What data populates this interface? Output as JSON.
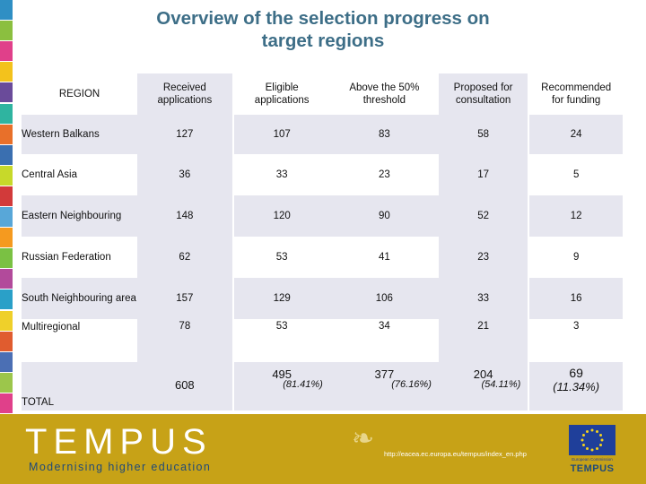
{
  "title_line1": "Overview of the selection progress on",
  "title_line2": "target regions",
  "strip_colors": [
    "#2f8fc4",
    "#8bbf3f",
    "#e0408a",
    "#f3c21c",
    "#6a4b9a",
    "#2fb4a0",
    "#e8702a",
    "#3a6fb0",
    "#c7d92a",
    "#d23a3a",
    "#58a7d8",
    "#f59a1f",
    "#7ac143",
    "#b24a9b",
    "#2aa0c8",
    "#efd02a",
    "#e05c2f",
    "#4b6fb4",
    "#9cc64b",
    "#e0408a"
  ],
  "table": {
    "headers": {
      "region": "REGION",
      "received": [
        "Received",
        "applications"
      ],
      "eligible": [
        "Eligible",
        "applications"
      ],
      "above": [
        "Above the 50%",
        "threshold"
      ],
      "proposed": [
        "Proposed for",
        "consultation"
      ],
      "recommended": [
        "Recommended",
        "for funding"
      ]
    },
    "rows": [
      {
        "region": "Western Balkans",
        "received": "127",
        "eligible": "107",
        "above": "83",
        "proposed": "58",
        "recommended": "24"
      },
      {
        "region": "Central Asia",
        "received": "36",
        "eligible": "33",
        "above": "23",
        "proposed": "17",
        "recommended": "5"
      },
      {
        "region": "Eastern Neighbouring",
        "received": "148",
        "eligible": "120",
        "above": "90",
        "proposed": "52",
        "recommended": "12"
      },
      {
        "region": "Russian Federation",
        "received": "62",
        "eligible": "53",
        "above": "41",
        "proposed": "23",
        "recommended": "9"
      },
      {
        "region": "South Neighbouring area",
        "received": "157",
        "eligible": "129",
        "above": "106",
        "proposed": "33",
        "recommended": "16"
      },
      {
        "region": "Multiregional",
        "received": "78",
        "eligible": "53",
        "above": "34",
        "proposed": "21",
        "recommended": "3"
      }
    ],
    "total": {
      "label": "TOTAL",
      "received": "608",
      "eligible": "495",
      "eligible_pct": "(81.41%)",
      "above": "377",
      "above_pct": "(76.16%)",
      "proposed": "204",
      "proposed_pct": "(54.11%)",
      "recommended": "69",
      "recommended_pct": "(11.34%)"
    }
  },
  "footer": {
    "logo": "TEMPUS",
    "tagline": "Modernising higher education",
    "url": "http://eacea.ec.europa.eu/tempus/index_en.php",
    "eu_label": "European Commission",
    "eu_tempus": "TEMPUS",
    "background": "#c7a217"
  }
}
